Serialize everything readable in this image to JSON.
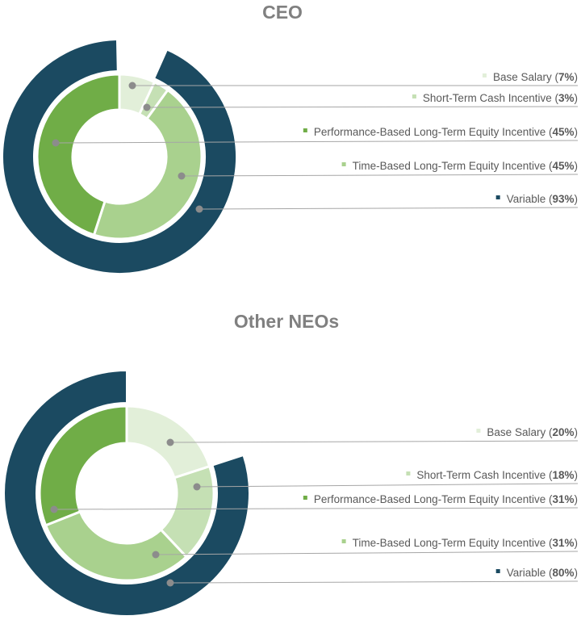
{
  "colors": {
    "base_salary": "#e2efd9",
    "short_term": "#c5e0b4",
    "performance_equity": "#70ad47",
    "time_equity": "#a9d18e",
    "variable": "#1b4a61"
  },
  "chart_data": [
    {
      "type": "pie",
      "title": "CEO",
      "inner_ring": [
        {
          "name": "Base Salary",
          "value": 7,
          "label": "7%",
          "color": "#e2efd9"
        },
        {
          "name": "Short-Term Cash Incentive",
          "value": 3,
          "label": "3%",
          "color": "#c5e0b4"
        },
        {
          "name": "Time-Based Long-Term Equity Incentive",
          "value": 45,
          "label": "45%",
          "color": "#a9d18e"
        },
        {
          "name": "Performance-Based Long-Term Equity Incentive",
          "value": 45,
          "label": "45%",
          "color": "#70ad47"
        }
      ],
      "outer_ring": [
        {
          "name": "Variable",
          "value": 93,
          "label": "93%",
          "color": "#1b4a61"
        }
      ],
      "legend": [
        {
          "name": "Base Salary",
          "pct": "7%",
          "color": "#e2efd9"
        },
        {
          "name": "Short-Term Cash Incentive",
          "pct": "3%",
          "color": "#c5e0b4"
        },
        {
          "name": "Performance-Based Long-Term Equity Incentive",
          "pct": "45%",
          "color": "#70ad47"
        },
        {
          "name": "Time-Based Long-Term Equity Incentive",
          "pct": "45%",
          "color": "#a9d18e"
        },
        {
          "name": "Variable",
          "pct": "93%",
          "color": "#1b4a61"
        }
      ]
    },
    {
      "type": "pie",
      "title": "Other NEOs",
      "inner_ring": [
        {
          "name": "Base Salary",
          "value": 20,
          "label": "20%",
          "color": "#e2efd9"
        },
        {
          "name": "Short-Term Cash Incentive",
          "value": 18,
          "label": "18%",
          "color": "#c5e0b4"
        },
        {
          "name": "Time-Based Long-Term Equity Incentive",
          "value": 31,
          "label": "31%",
          "color": "#a9d18e"
        },
        {
          "name": "Performance-Based Long-Term Equity Incentive",
          "value": 31,
          "label": "31%",
          "color": "#70ad47"
        }
      ],
      "outer_ring": [
        {
          "name": "Variable",
          "value": 80,
          "label": "80%",
          "color": "#1b4a61"
        }
      ],
      "legend": [
        {
          "name": "Base Salary",
          "pct": "20%",
          "color": "#e2efd9"
        },
        {
          "name": "Short-Term Cash Incentive",
          "pct": "18%",
          "color": "#c5e0b4"
        },
        {
          "name": "Performance-Based Long-Term Equity Incentive",
          "pct": "31%",
          "color": "#70ad47"
        },
        {
          "name": "Time-Based Long-Term Equity Incentive",
          "pct": "31%",
          "color": "#a9d18e"
        },
        {
          "name": "Variable",
          "pct": "80%",
          "color": "#1b4a61"
        }
      ]
    }
  ]
}
